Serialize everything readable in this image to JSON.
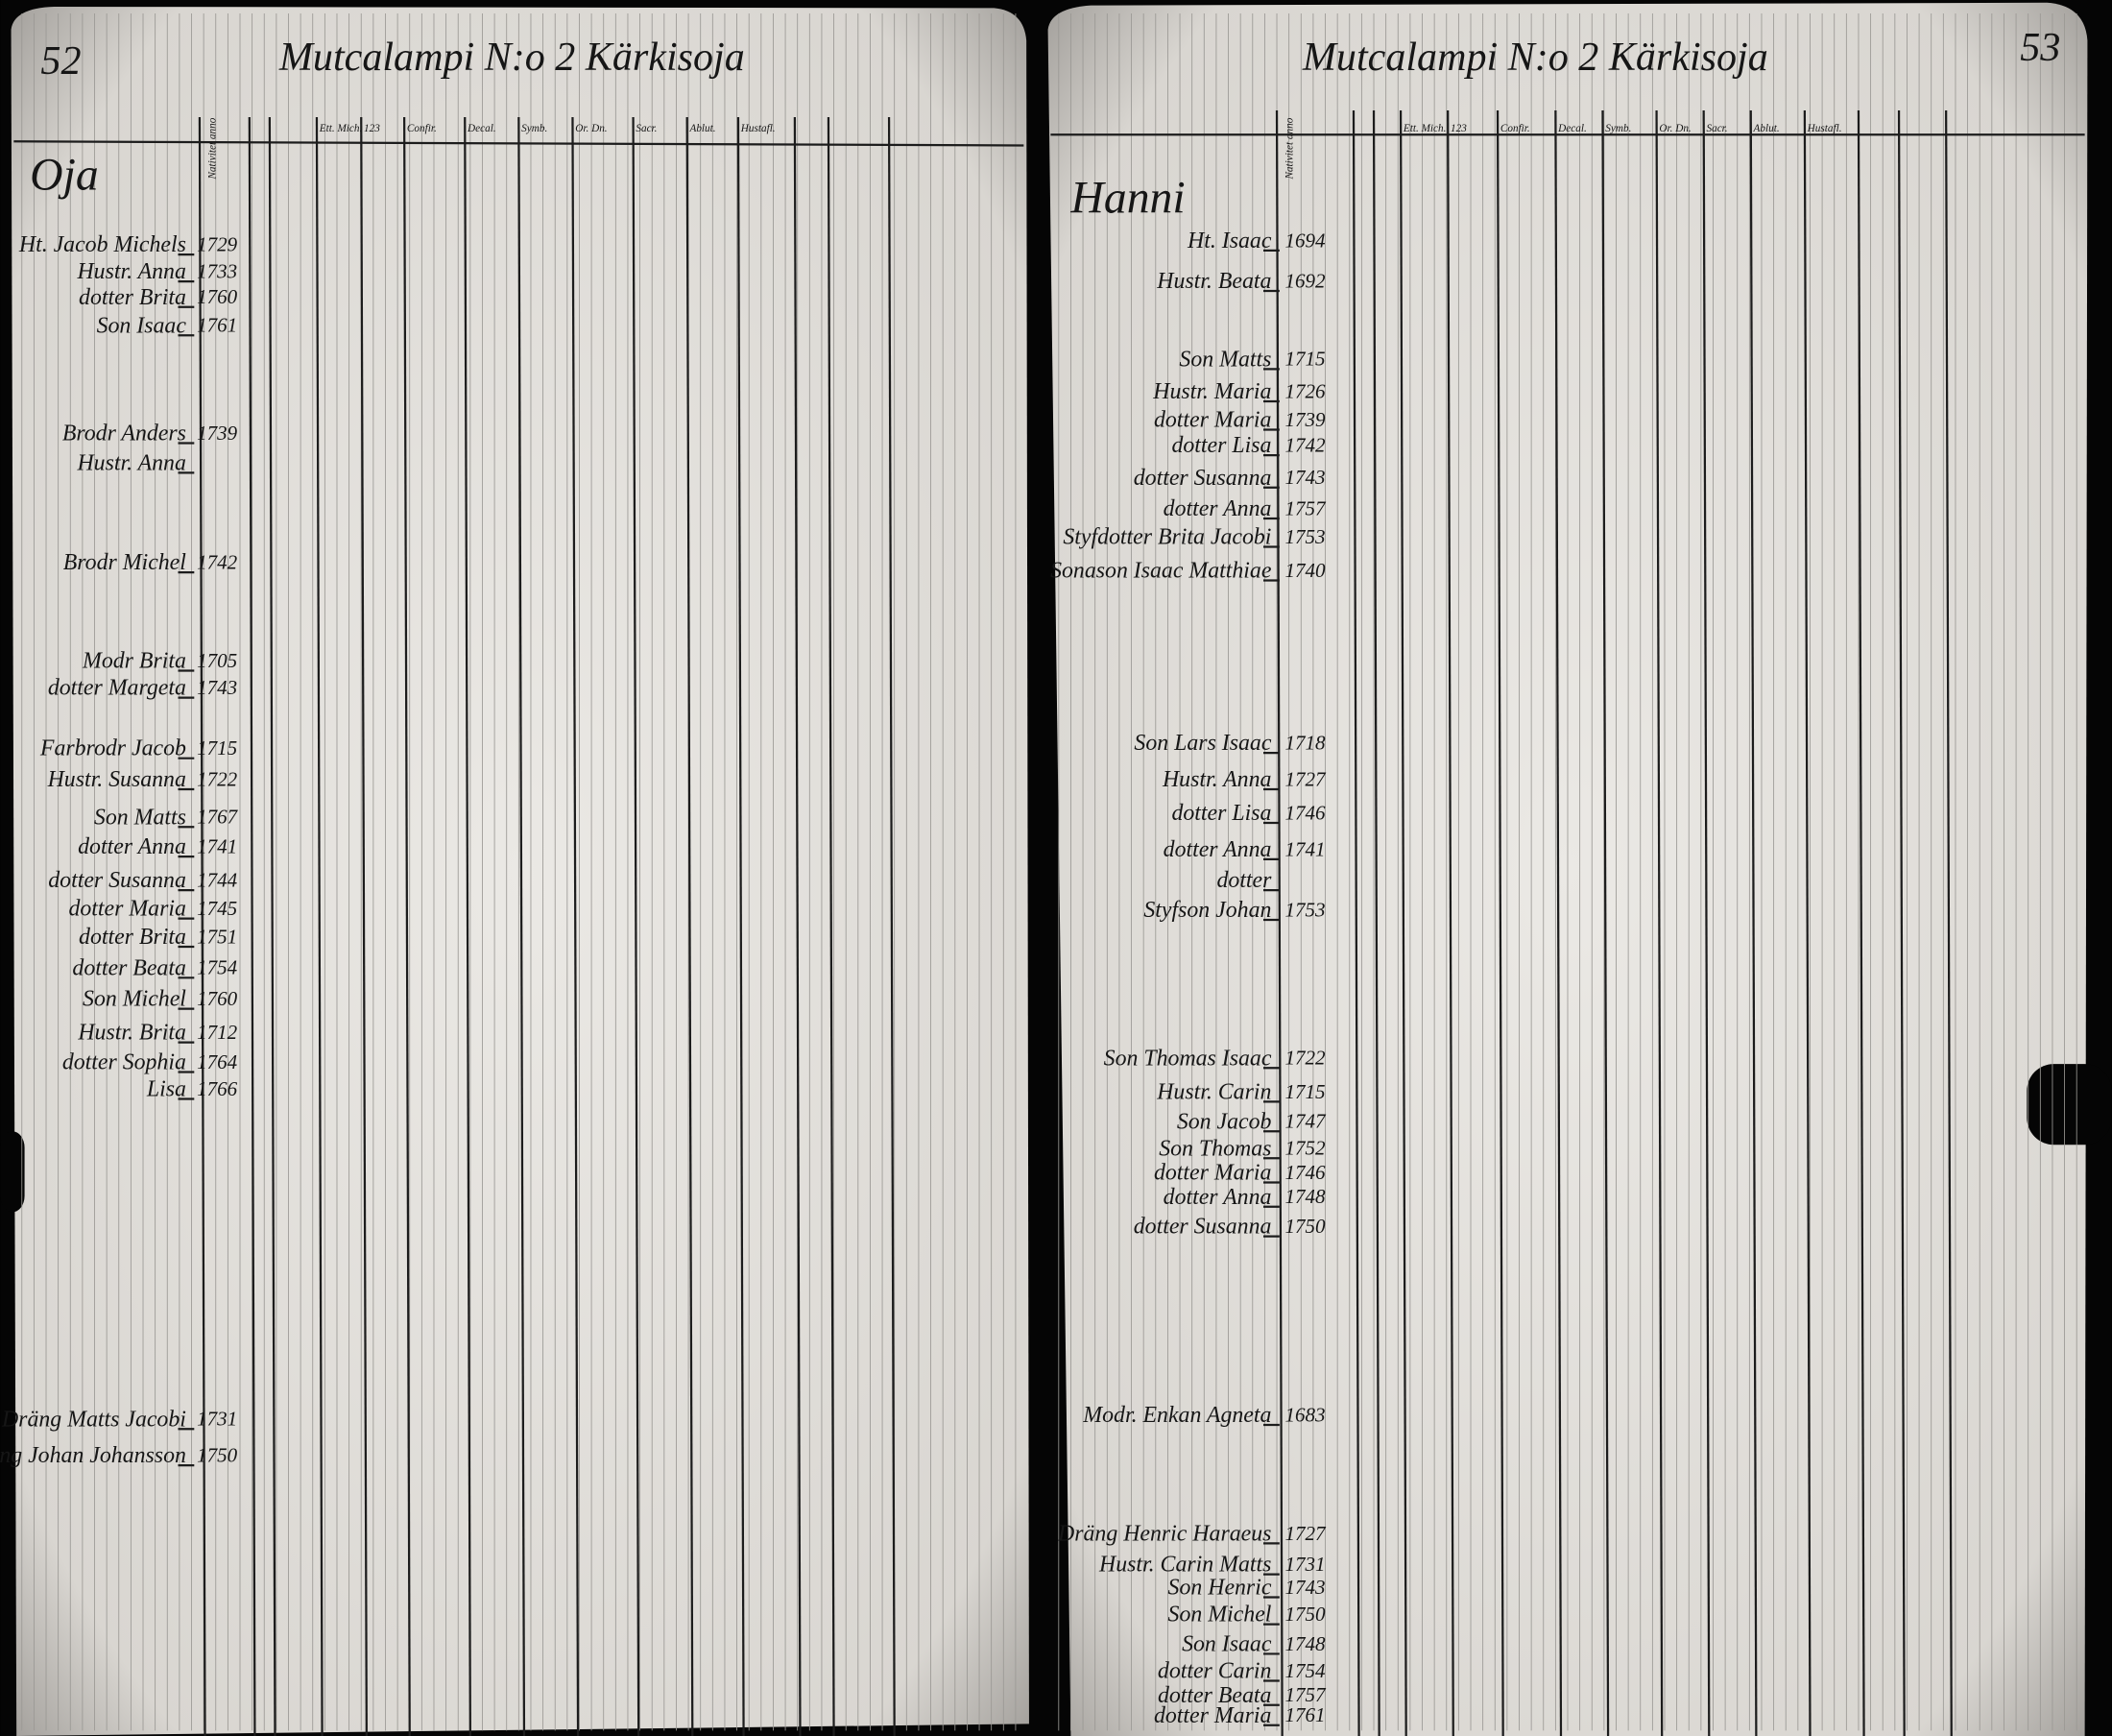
{
  "pages": [
    {
      "number": "52",
      "title": "Mutcalampi N:o 2 Kärkisoja",
      "farm": "Oja",
      "columns": [
        "Nativitet anno",
        "Ett. Mich.",
        "123",
        "Confir.",
        "Decal.",
        "Symb.",
        "Or. Dn.",
        "Sacr.",
        "Ablut.",
        "Hustafl."
      ],
      "rows": [
        {
          "name": "Ht. Jacob Michels",
          "year": 1729
        },
        {
          "name": "Hustr. Anna",
          "year": 1733
        },
        {
          "name": "dotter Brita",
          "year": 1760
        },
        {
          "name": "Son Isaac",
          "year": 1761
        },
        {
          "name": "Brodr Anders",
          "year": 1739
        },
        {
          "name": "Hustr. Anna"
        },
        {
          "name": "Brodr Michel",
          "year": 1742
        },
        {
          "name": "Modr Brita",
          "year": 1705
        },
        {
          "name": "dotter Margeta",
          "year": 1743
        },
        {
          "name": "Farbrodr Jacob",
          "year": 1715
        },
        {
          "name": "Hustr. Susanna",
          "year": 1722
        },
        {
          "name": "Son Matts",
          "year": 1767
        },
        {
          "name": "dotter Anna",
          "year": 1741
        },
        {
          "name": "dotter Susanna",
          "year": 1744
        },
        {
          "name": "dotter Maria",
          "year": 1745
        },
        {
          "name": "dotter Brita",
          "year": 1751
        },
        {
          "name": "dotter Beata",
          "year": 1754
        },
        {
          "name": "Son Michel",
          "year": 1760
        },
        {
          "name": "Hustr. Brita",
          "year": 1712
        },
        {
          "name": "dotter Sophia",
          "year": 1764
        },
        {
          "name": "Lisa",
          "year": 1766
        },
        {
          "name": "Dräng Matts Jacobi",
          "year": 1731
        },
        {
          "name": "Dräng Johan Johansson",
          "year": 1750
        }
      ]
    },
    {
      "number": "53",
      "title": "Mutcalampi N:o 2 Kärkisoja",
      "farm": "Hanni",
      "columns": [
        "Nativitet anno",
        "Ett. Mich.",
        "123",
        "Confir.",
        "Decal.",
        "Symb.",
        "Or. Dn.",
        "Sacr.",
        "Ablut.",
        "Hustafl."
      ],
      "rows": [
        {
          "name": "Ht. Isaac",
          "year": 1694
        },
        {
          "name": "Hustr. Beata",
          "year": 1692
        },
        {
          "name": "Son Matts",
          "year": 1715
        },
        {
          "name": "Hustr. Maria",
          "year": 1726
        },
        {
          "name": "dotter Maria",
          "year": 1739
        },
        {
          "name": "dotter Lisa",
          "year": 1742
        },
        {
          "name": "dotter Susanna",
          "year": 1743
        },
        {
          "name": "dotter Anna",
          "year": 1757
        },
        {
          "name": "Styfdotter Brita Jacobi",
          "year": 1753
        },
        {
          "name": "Sonason Isaac Matthiae",
          "year": 1740
        },
        {
          "name": "Son Lars Isaac",
          "year": 1718
        },
        {
          "name": "Hustr. Anna",
          "year": 1727
        },
        {
          "name": "dotter Lisa",
          "year": 1746
        },
        {
          "name": "dotter Anna",
          "year": 1741
        },
        {
          "name": "dotter"
        },
        {
          "name": "Styfson Johan",
          "year": 1753
        },
        {
          "name": "Son Thomas Isaac",
          "year": 1722
        },
        {
          "name": "Hustr. Carin",
          "year": 1715
        },
        {
          "name": "Son Jacob",
          "year": 1747
        },
        {
          "name": "Son Thomas",
          "year": 1752
        },
        {
          "name": "dotter Maria",
          "year": 1746
        },
        {
          "name": "dotter Anna",
          "year": 1748
        },
        {
          "name": "dotter Susanna",
          "year": 1750
        },
        {
          "name": "Modr. Enkan Agneta",
          "year": 1683
        },
        {
          "name": "Dräng Henric Haraeus",
          "year": 1727
        },
        {
          "name": "Hustr. Carin Matts",
          "year": 1731
        },
        {
          "name": "Son Henric",
          "year": 1743
        },
        {
          "name": "Son Michel",
          "year": 1750
        },
        {
          "name": "Son Isaac",
          "year": 1748
        },
        {
          "name": "dotter Carin",
          "year": 1754
        },
        {
          "name": "dotter Beata",
          "year": 1757
        },
        {
          "name": "dotter Maria",
          "year": 1761
        }
      ]
    }
  ]
}
